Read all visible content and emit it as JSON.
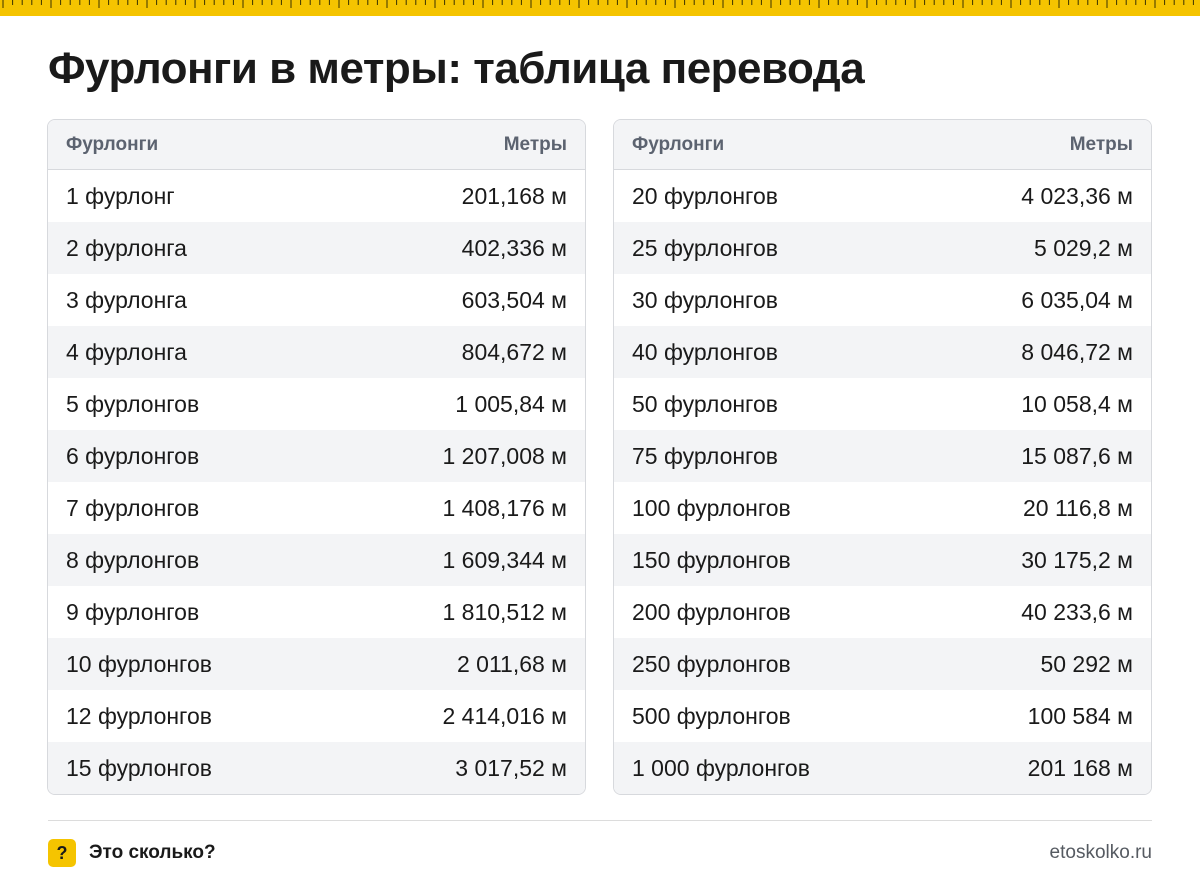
{
  "title": "Фурлонги в метры: таблица перевода",
  "colors": {
    "accent": "#f5c400",
    "header_bg": "#f3f4f6",
    "border": "#d7d9dd"
  },
  "table_left": {
    "col_unit": "Фурлонги",
    "col_value": "Метры",
    "rows": [
      {
        "unit": "1 фурлонг",
        "value": "201,168 м"
      },
      {
        "unit": "2 фурлонга",
        "value": "402,336 м"
      },
      {
        "unit": "3 фурлонга",
        "value": "603,504 м"
      },
      {
        "unit": "4 фурлонга",
        "value": "804,672 м"
      },
      {
        "unit": "5 фурлонгов",
        "value": "1 005,84 м"
      },
      {
        "unit": "6 фурлонгов",
        "value": "1 207,008 м"
      },
      {
        "unit": "7 фурлонгов",
        "value": "1 408,176 м"
      },
      {
        "unit": "8 фурлонгов",
        "value": "1 609,344 м"
      },
      {
        "unit": "9 фурлонгов",
        "value": "1 810,512 м"
      },
      {
        "unit": "10 фурлонгов",
        "value": "2 011,68 м"
      },
      {
        "unit": "12 фурлонгов",
        "value": "2 414,016 м"
      },
      {
        "unit": "15 фурлонгов",
        "value": "3 017,52 м"
      }
    ]
  },
  "table_right": {
    "col_unit": "Фурлонги",
    "col_value": "Метры",
    "rows": [
      {
        "unit": "20 фурлонгов",
        "value": "4 023,36 м"
      },
      {
        "unit": "25 фурлонгов",
        "value": "5 029,2 м"
      },
      {
        "unit": "30 фурлонгов",
        "value": "6 035,04 м"
      },
      {
        "unit": "40 фурлонгов",
        "value": "8 046,72 м"
      },
      {
        "unit": "50 фурлонгов",
        "value": "10 058,4 м"
      },
      {
        "unit": "75 фурлонгов",
        "value": "15 087,6 м"
      },
      {
        "unit": "100 фурлонгов",
        "value": "20 116,8 м"
      },
      {
        "unit": "150 фурлонгов",
        "value": "30 175,2 м"
      },
      {
        "unit": "200 фурлонгов",
        "value": "40 233,6 м"
      },
      {
        "unit": "250 фурлонгов",
        "value": "50 292 м"
      },
      {
        "unit": "500 фурлонгов",
        "value": "100 584 м"
      },
      {
        "unit": "1 000 фурлонгов",
        "value": "201 168 м"
      }
    ]
  },
  "footer": {
    "badge": "?",
    "brand": "Это сколько?",
    "site": "etoskolko.ru"
  }
}
